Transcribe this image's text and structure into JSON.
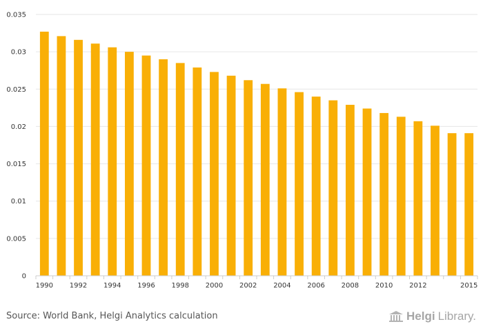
{
  "chart_data": {
    "type": "bar",
    "categories": [
      "1990",
      "1991",
      "1992",
      "1993",
      "1994",
      "1995",
      "1996",
      "1997",
      "1998",
      "1999",
      "2000",
      "2001",
      "2002",
      "2003",
      "2004",
      "2005",
      "2006",
      "2007",
      "2008",
      "2009",
      "2010",
      "2011",
      "2012",
      "2013",
      "2014",
      "2015"
    ],
    "x_tick_labels": [
      "1990",
      "1992",
      "1994",
      "1996",
      "1998",
      "2000",
      "2002",
      "2004",
      "2006",
      "2008",
      "2010",
      "2012",
      "2015"
    ],
    "values": [
      0.0327,
      0.0321,
      0.0316,
      0.0311,
      0.0306,
      0.03,
      0.0295,
      0.029,
      0.0285,
      0.0279,
      0.0273,
      0.0268,
      0.0262,
      0.0257,
      0.0251,
      0.0246,
      0.024,
      0.0235,
      0.0229,
      0.0224,
      0.0218,
      0.0213,
      0.0207,
      0.0201,
      0.0191,
      0.0191
    ],
    "ylim": [
      0,
      0.035
    ],
    "y_ticks": [
      "0",
      "0.005",
      "0.01",
      "0.015",
      "0.02",
      "0.025",
      "0.03",
      "0.035"
    ],
    "grid": true,
    "bar_color": "#f9af06",
    "title": "",
    "xlabel": "",
    "ylabel": ""
  },
  "source_text": "Source: World Bank, Helgi Analytics calculation",
  "logo": {
    "name": "Helgi",
    "suffix": "Library."
  }
}
